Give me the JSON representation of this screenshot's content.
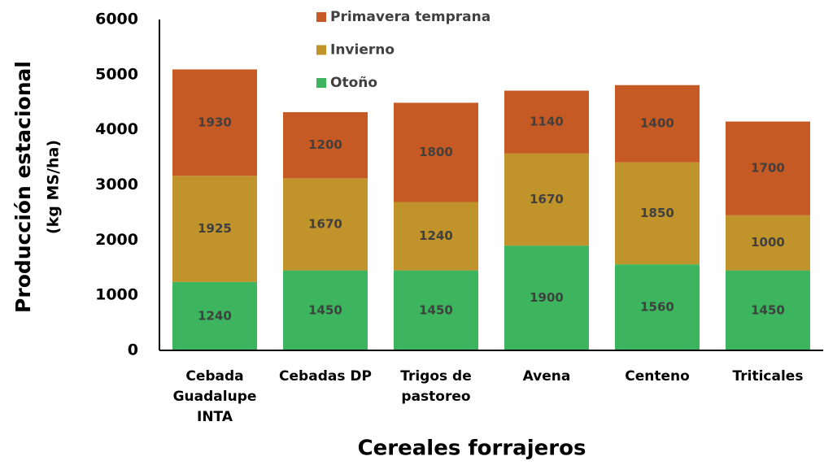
{
  "chart_data": {
    "type": "stacked_bar",
    "ylabel": [
      "Producción estacional",
      "(kg MS/ha)"
    ],
    "xlabel": "Cereales forrajeros",
    "categories": [
      [
        "Cebada",
        "Guadalupe",
        "INTA"
      ],
      [
        "Cebadas DP"
      ],
      [
        "Trigos de",
        "pastoreo"
      ],
      [
        "Avena"
      ],
      [
        "Centeno"
      ],
      [
        "Triticales"
      ]
    ],
    "series": [
      {
        "name": "Otoño",
        "color": "#3cb55e",
        "values": [
          1240,
          1450,
          1450,
          1900,
          1560,
          1450
        ]
      },
      {
        "name": "Invierno",
        "color": "#c0932b",
        "values": [
          1925,
          1670,
          1240,
          1670,
          1850,
          1000
        ]
      },
      {
        "name": "Primavera temprana",
        "color": "#c55a24",
        "values": [
          1930,
          1200,
          1800,
          1140,
          1400,
          1700
        ]
      }
    ],
    "ylim": [
      0,
      6000
    ],
    "yticks": [
      0,
      1000,
      2000,
      3000,
      4000,
      5000,
      6000
    ],
    "grid": false
  }
}
